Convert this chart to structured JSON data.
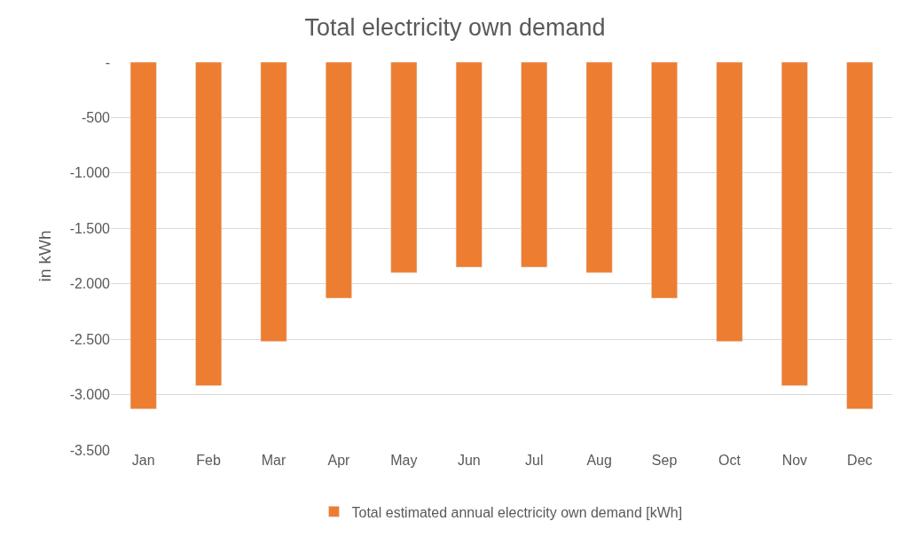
{
  "chart_data": {
    "type": "bar",
    "title": "Total electricity own demand",
    "ylabel": "in kWh",
    "categories": [
      "Jan",
      "Feb",
      "Mar",
      "Apr",
      "May",
      "Jun",
      "Jul",
      "Aug",
      "Sep",
      "Oct",
      "Nov",
      "Dec"
    ],
    "series": [
      {
        "name": "Total estimated annual electricity own demand [kWh]",
        "color": "#ed7d31",
        "values": [
          -3130,
          -2920,
          -2520,
          -2130,
          -1900,
          -1850,
          -1850,
          -1900,
          -2130,
          -2520,
          -2920,
          -3130
        ]
      }
    ],
    "ylim": [
      -3500,
      0
    ],
    "yticks": [
      {
        "value": 0,
        "label": "-"
      },
      -500,
      {
        "value": -1000,
        "label": "-1.000"
      },
      {
        "value": -1500,
        "label": "-1.500"
      },
      {
        "value": -2000,
        "label": "-2.000"
      },
      {
        "value": -2500,
        "label": "-2.500"
      },
      {
        "value": -3000,
        "label": "-3.000"
      },
      {
        "value": -3500,
        "label": "-3.500"
      }
    ],
    "grid": "y",
    "legend": "bottom"
  }
}
